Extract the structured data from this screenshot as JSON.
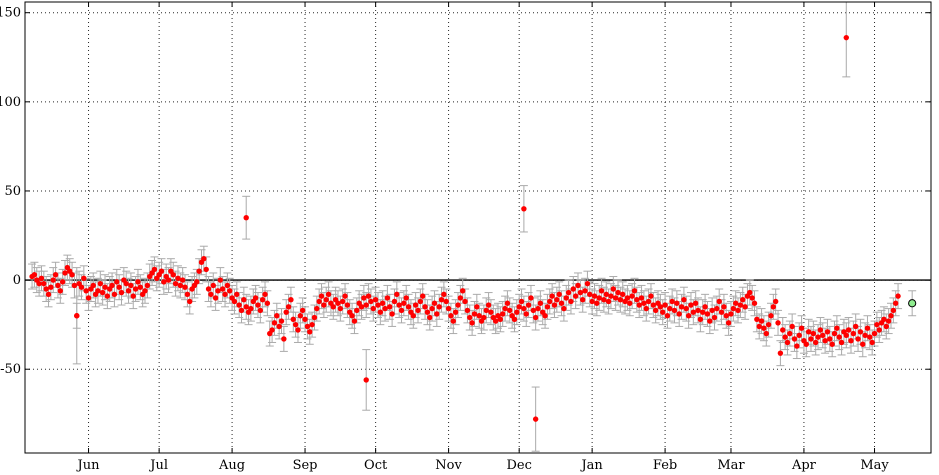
{
  "chart_data": {
    "type": "scatter",
    "title": "",
    "xlabel": "",
    "ylabel": "",
    "x_range": [
      "2013-05-05",
      "2014-05-25"
    ],
    "ylim": [
      -97,
      156
    ],
    "grid": true,
    "zero_line": true,
    "y_ticks": [
      -50,
      0,
      50,
      100,
      150
    ],
    "x_ticks": [
      {
        "date": "2013-06-01",
        "label": "Jun"
      },
      {
        "date": "2013-07-01",
        "label": "Jul"
      },
      {
        "date": "2013-08-01",
        "label": "Aug"
      },
      {
        "date": "2013-09-01",
        "label": "Sep"
      },
      {
        "date": "2013-10-01",
        "label": "Oct"
      },
      {
        "date": "2013-11-01",
        "label": "Nov"
      },
      {
        "date": "2013-12-01",
        "label": "Dec"
      },
      {
        "date": "2014-01-01",
        "label": "Jan"
      },
      {
        "date": "2014-02-01",
        "label": "Feb"
      },
      {
        "date": "2014-03-01",
        "label": "Mar"
      },
      {
        "date": "2014-04-01",
        "label": "Apr"
      },
      {
        "date": "2014-05-01",
        "label": "May"
      }
    ],
    "colors": {
      "points": "#ff0000",
      "error_bars": "#aaaaaa",
      "latest_point": "#90ee90",
      "zero_line": "#000000"
    },
    "error_bar_halfwidth": 7,
    "outliers": [
      {
        "date": "2013-05-27",
        "y": -20,
        "err": 27
      },
      {
        "date": "2013-08-07",
        "y": 35,
        "err": 12
      },
      {
        "date": "2013-09-27",
        "y": -56,
        "err": 17
      },
      {
        "date": "2013-12-03",
        "y": 40,
        "err": 13
      },
      {
        "date": "2013-12-08",
        "y": -78,
        "err": 18
      },
      {
        "date": "2014-04-19",
        "y": 136,
        "err": 22
      }
    ],
    "series": [
      {
        "start_date": "2013-05-08",
        "step_days": 1,
        "values": [
          2,
          3,
          0,
          -2,
          1,
          -2,
          -5,
          -8,
          -4,
          0,
          3,
          -3,
          -6,
          -1,
          4,
          7,
          5,
          3,
          -3,
          -20,
          -2,
          -4,
          1,
          -6,
          -10,
          -5,
          -3,
          -8,
          -6,
          -2,
          -7,
          -4,
          -9,
          -5,
          -3,
          -8,
          -1,
          -4,
          -7,
          0,
          -2,
          -6,
          -3,
          -9,
          -5,
          -1,
          -4,
          -8,
          -6,
          -3,
          2,
          4,
          6,
          1,
          3,
          5,
          -1,
          2,
          0,
          5,
          3,
          -2,
          1,
          -3,
          0,
          -4,
          -8,
          -12,
          -5,
          -3,
          -1,
          5,
          10,
          12,
          6,
          -5,
          -8,
          -3,
          -10,
          -6,
          0,
          -5,
          -8,
          -3,
          -6,
          -10,
          -12,
          -8,
          -14,
          -17,
          -11,
          -15,
          -18,
          -16,
          -12,
          -10,
          -14,
          -17,
          -11,
          -8,
          -13,
          -30,
          -28,
          -24,
          -20,
          -26,
          -23,
          -33,
          -18,
          -15,
          -11,
          -22,
          -25,
          -28,
          -20,
          -17,
          -22,
          -26,
          -29,
          -25,
          -21,
          -16,
          -12,
          -9,
          -14,
          -11,
          -8,
          -13,
          -15,
          -11,
          -13,
          -16,
          -12,
          -9,
          -14,
          -18,
          -20,
          -23,
          -17,
          -13,
          -15,
          -10,
          -14,
          -9,
          -12,
          -16,
          -11,
          -14,
          -18,
          -13,
          -16,
          -10,
          -15,
          -19,
          -12,
          -8,
          -14,
          -17,
          -13,
          -10,
          -15,
          -18,
          -20,
          -14,
          -17,
          -12,
          -9,
          -15,
          -18,
          -21,
          -16,
          -13,
          -19,
          -15,
          -11,
          -8,
          -12,
          -16,
          -20,
          -23,
          -18,
          -14,
          -10,
          -6,
          -12,
          -17,
          -21,
          -24,
          -19,
          -15,
          -20,
          -23,
          -21,
          -17,
          -14,
          -18,
          -21,
          -23,
          -20,
          -22,
          -19,
          -16,
          -13,
          -17,
          -20,
          -22,
          -18,
          -15,
          -12,
          -16,
          -19,
          -14,
          -10,
          -17,
          -21,
          -16,
          -13,
          -18,
          -20,
          -15,
          -12,
          -9,
          -14,
          -11,
          -8,
          -13,
          -16,
          -10,
          -7,
          -12,
          -5,
          -9,
          -3,
          -7,
          -11,
          -6,
          -2,
          -8,
          -12,
          -9,
          -13,
          -10,
          -6,
          -11,
          -8,
          -12,
          -9,
          -5,
          -10,
          -7,
          -11,
          -8,
          -12,
          -10,
          -13,
          -9,
          -6,
          -11,
          -14,
          -10,
          -13,
          -16,
          -12,
          -9,
          -14,
          -17,
          -13,
          -15,
          -18,
          -14,
          -20,
          -16,
          -12,
          -17,
          -13,
          -19,
          -15,
          -11,
          -16,
          -20,
          -14,
          -18,
          -13,
          -17,
          -22,
          -18,
          -15,
          -19,
          -23,
          -17,
          -21,
          -16,
          -12,
          -18,
          -15,
          -20,
          -24,
          -19,
          -16,
          -13,
          -17,
          -14,
          -11,
          -15,
          -9,
          -7,
          -10,
          -13,
          -22,
          -26,
          -23,
          -27,
          -30,
          -25,
          -20,
          -15,
          -12,
          -24,
          -41,
          -28,
          -32,
          -35,
          -30,
          -26,
          -33,
          -37,
          -31,
          -27,
          -34,
          -36,
          -29,
          -33,
          -30,
          -35,
          -32,
          -28,
          -31,
          -34,
          -29,
          -33,
          -36,
          -30,
          -27,
          -32,
          -35,
          -29,
          -31,
          -28,
          -34,
          -30,
          -26,
          -33,
          -29,
          -36,
          -31,
          -27,
          -32,
          -35,
          -30,
          -25,
          -28,
          -24,
          -22,
          -26,
          -23,
          -20,
          -17,
          -13,
          -9
        ]
      }
    ],
    "latest_point": {
      "date": "2014-05-17",
      "y": -13
    }
  }
}
